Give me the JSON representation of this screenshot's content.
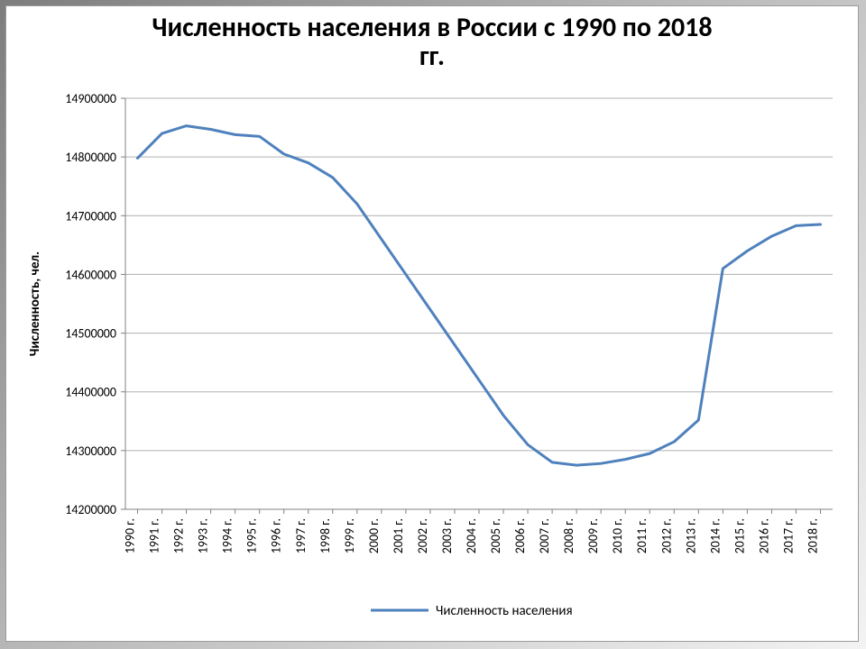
{
  "title_line1": "Численность населения в России с 1990 по 2018",
  "title_line2": "гг.",
  "title_fontsize": 30,
  "title_color": "#000000",
  "chart": {
    "type": "line",
    "y_axis_title": "Численность, чел.",
    "legend_label": "Численность населения",
    "line_color": "#4f81bd",
    "line_width": 3,
    "background_color": "#ffffff",
    "grid_color": "#b0b0b0",
    "grid_width": 1,
    "plot_border_color": "#808080",
    "tick_font_size": 14,
    "axis_title_font_size": 15,
    "legend_font_size": 15,
    "ylim": [
      14200000,
      14900000
    ],
    "ytick_step": 100000,
    "yticks": [
      14200000,
      14300000,
      14400000,
      14500000,
      14600000,
      14700000,
      14800000,
      14900000
    ],
    "categories": [
      "1990 г.",
      "1991 г.",
      "1992 г.",
      "1993 г.",
      "1994 г.",
      "1995 г.",
      "1996 г.",
      "1997 г.",
      "1998 г.",
      "1999 г.",
      "2000 г.",
      "2001 г.",
      "2002 г.",
      "2003 г.",
      "2004 г.",
      "2005 г.",
      "2006 г.",
      "2007 г.",
      "2008 г.",
      "2009 г.",
      "2010 г.",
      "2011 г.",
      "2012 г.",
      "2013 г.",
      "2014 г.",
      "2015 г.",
      "2016 г.",
      "2017 г.",
      "2018 г."
    ],
    "values": [
      14798000,
      14840000,
      14853000,
      14847000,
      14838000,
      14835000,
      14805000,
      14790000,
      14765000,
      14720000,
      14660000,
      14600000,
      14540000,
      14480000,
      14420000,
      14360000,
      14310000,
      14280000,
      14275000,
      14278000,
      14285000,
      14295000,
      14315000,
      14352000,
      14610000,
      14640000,
      14665000,
      14683000,
      14685000
    ]
  }
}
